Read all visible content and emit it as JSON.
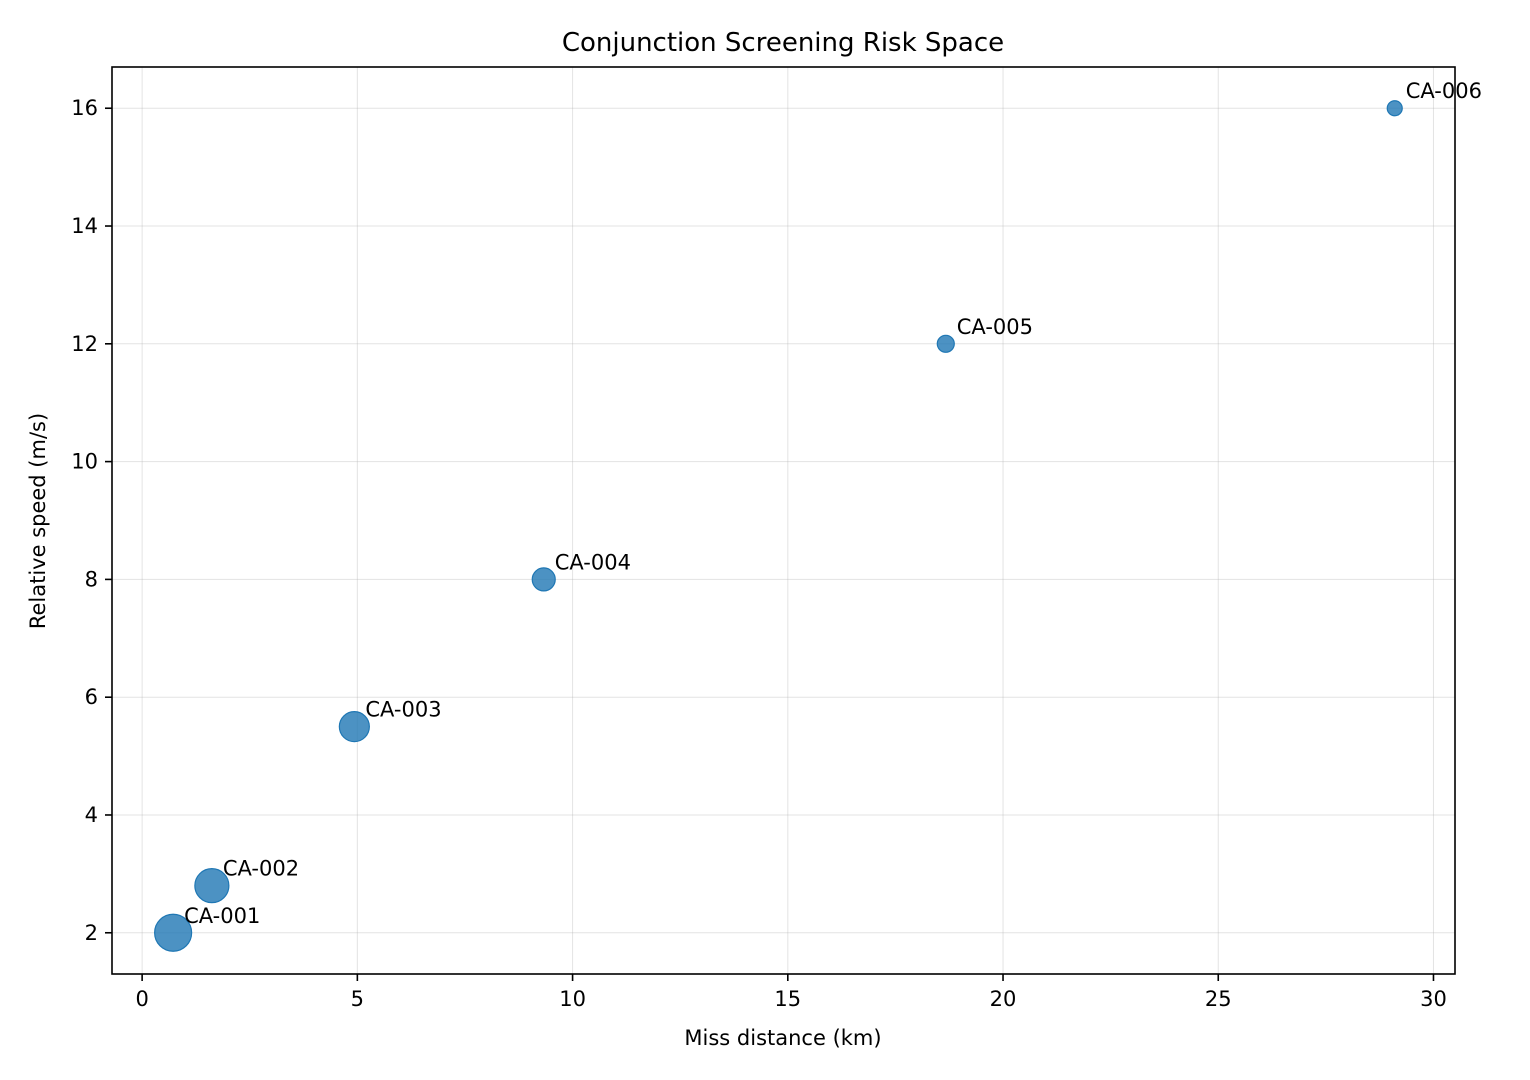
{
  "chart_data": {
    "type": "scatter",
    "title": "Conjunction Screening Risk Space",
    "xlabel": "Miss distance (km)",
    "ylabel": "Relative speed (m/s)",
    "xlim": [
      -0.7,
      30.5
    ],
    "ylim": [
      1.3,
      16.7
    ],
    "xticks": [
      0,
      5,
      10,
      15,
      20,
      25,
      30
    ],
    "yticks": [
      2,
      4,
      6,
      8,
      10,
      12,
      14,
      16
    ],
    "grid": true,
    "marker_color": "#1f77b4",
    "points": [
      {
        "label": "CA-001",
        "x": 0.72,
        "y": 2.0,
        "size_rank": 6
      },
      {
        "label": "CA-002",
        "x": 1.62,
        "y": 2.8,
        "size_rank": 5
      },
      {
        "label": "CA-003",
        "x": 4.93,
        "y": 5.5,
        "size_rank": 4
      },
      {
        "label": "CA-004",
        "x": 9.33,
        "y": 8.0,
        "size_rank": 3
      },
      {
        "label": "CA-005",
        "x": 18.67,
        "y": 12.0,
        "size_rank": 2
      },
      {
        "label": "CA-006",
        "x": 29.1,
        "y": 16.0,
        "size_rank": 1
      }
    ]
  }
}
